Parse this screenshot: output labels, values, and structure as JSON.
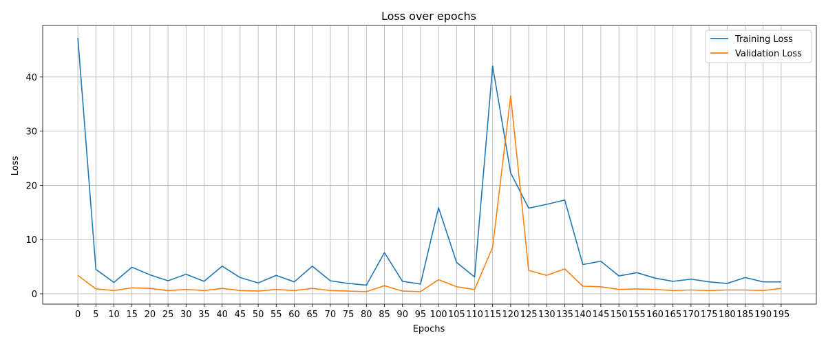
{
  "chart_data": {
    "type": "line",
    "title": "Loss over epochs",
    "xlabel": "Epochs",
    "ylabel": "Loss",
    "x": [
      0,
      5,
      10,
      15,
      20,
      25,
      30,
      35,
      40,
      45,
      50,
      55,
      60,
      65,
      70,
      75,
      80,
      85,
      90,
      95,
      100,
      105,
      110,
      115,
      120,
      125,
      130,
      135,
      140,
      145,
      150,
      155,
      160,
      165,
      170,
      175,
      180,
      185,
      190,
      195
    ],
    "xticks": [
      0,
      5,
      10,
      15,
      20,
      25,
      30,
      35,
      40,
      45,
      50,
      55,
      60,
      65,
      70,
      75,
      80,
      85,
      90,
      95,
      100,
      105,
      110,
      115,
      120,
      125,
      130,
      135,
      140,
      145,
      150,
      155,
      160,
      165,
      170,
      175,
      180,
      185,
      190,
      195
    ],
    "yticks": [
      0,
      10,
      20,
      30,
      40
    ],
    "xlim": [
      -9.75,
      204.75
    ],
    "ylim": [
      -1.9,
      49.5
    ],
    "grid": true,
    "legend_position": "top-right",
    "series": [
      {
        "name": "Training Loss",
        "color": "#1f77b4",
        "values": [
          47.2,
          4.5,
          2.1,
          4.9,
          3.5,
          2.4,
          3.6,
          2.3,
          5.1,
          3.0,
          2.0,
          3.4,
          2.2,
          5.1,
          2.4,
          1.9,
          1.6,
          7.6,
          2.3,
          1.8,
          15.9,
          5.8,
          3.1,
          42.0,
          22.3,
          15.8,
          16.5,
          17.3,
          5.4,
          6.0,
          3.3,
          3.9,
          2.9,
          2.3,
          2.7,
          2.2,
          1.9,
          3.0,
          2.2,
          2.2
        ]
      },
      {
        "name": "Validation Loss",
        "color": "#ff7f0e",
        "values": [
          3.4,
          0.9,
          0.6,
          1.1,
          1.0,
          0.6,
          0.8,
          0.6,
          1.0,
          0.6,
          0.5,
          0.8,
          0.6,
          1.0,
          0.6,
          0.5,
          0.4,
          1.5,
          0.5,
          0.4,
          2.6,
          1.3,
          0.8,
          8.6,
          36.5,
          4.3,
          3.4,
          4.6,
          1.4,
          1.3,
          0.8,
          0.9,
          0.8,
          0.6,
          0.7,
          0.6,
          0.7,
          0.7,
          0.6,
          1.0
        ]
      }
    ]
  }
}
